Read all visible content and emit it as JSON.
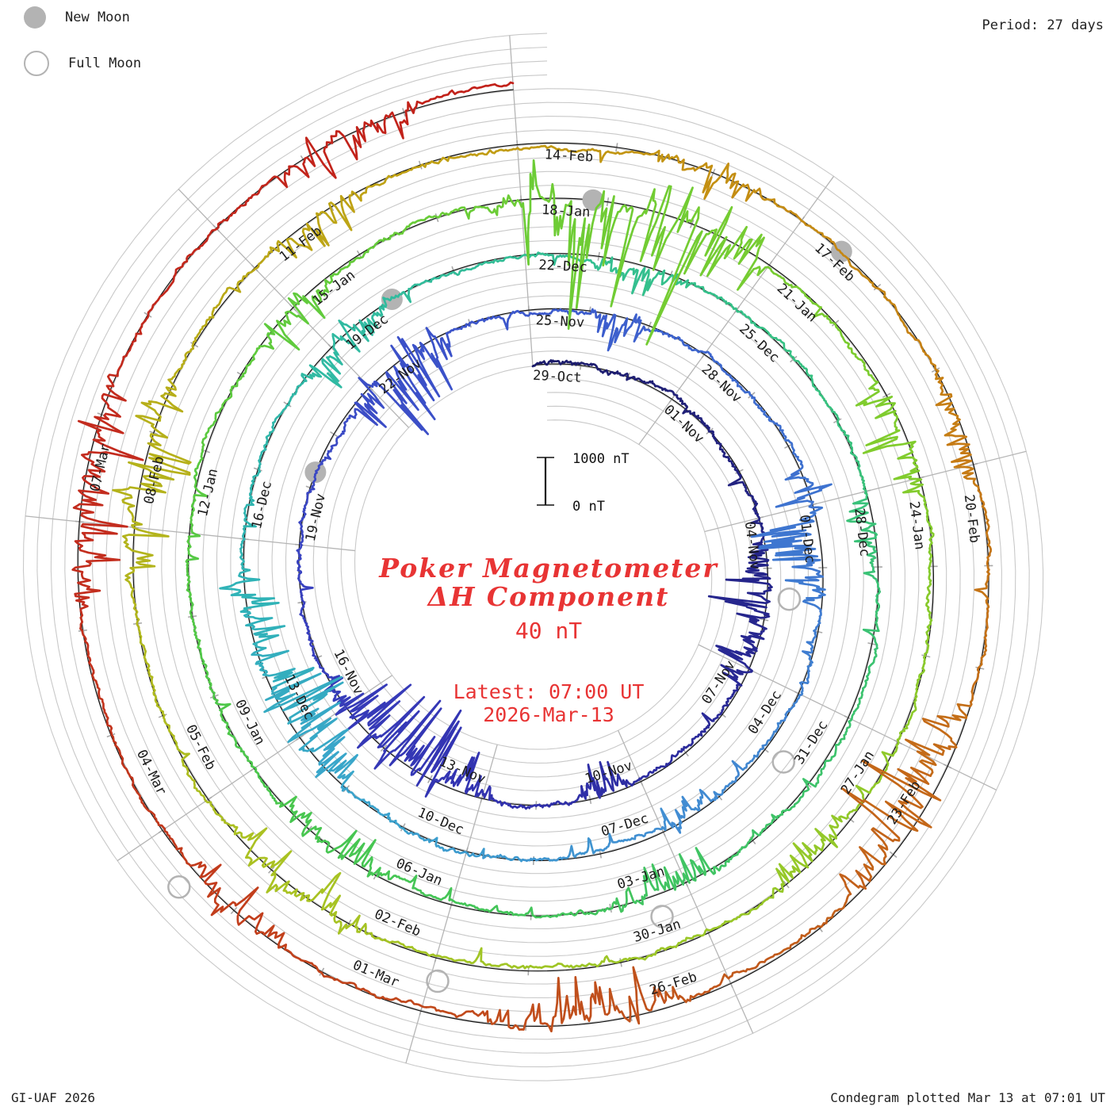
{
  "legend": {
    "new_moon": "New Moon",
    "full_moon": "Full Moon"
  },
  "period_label": "Period: 27 days",
  "credit": "GI-UAF 2026",
  "plotted_label": "Condegram plotted Mar 13 at 07:01 UT",
  "center": {
    "title_line1": "Poker Magnetometer",
    "title_line2": "ΔH Component",
    "amplitude_label": "40 nT",
    "latest_line1": "Latest: 07:00 UT",
    "latest_line2": "2026-Mar-13"
  },
  "scale_bar": {
    "top_label": "1000 nT",
    "bottom_label": "0 nT"
  },
  "colors": {
    "title_red": "#e83434",
    "grid_gray": "#c9c9c9",
    "radial_gray": "#b5b5b5",
    "tick_gray": "#a9a9a9",
    "baseline_black": "#111111",
    "moon_gray": "#b3b3b3",
    "label_dark": "#1c1c1c"
  },
  "chart_data": {
    "type": "line",
    "subtype": "condegram-spiral",
    "station": "Poker",
    "component": "ΔH Component",
    "quiet_amplitude_label": "40 nT",
    "period_days": 27,
    "scale": {
      "bar_nT": [
        0,
        1000
      ]
    },
    "start_day_label": "29-Oct",
    "end_day_label": "13-Mar",
    "latest_sample": "Latest: 07:00 UT 2026-Mar-13",
    "ring_labels": [
      {
        "day": 0,
        "label": "29-Oct"
      },
      {
        "day": 3,
        "label": "01-Nov"
      },
      {
        "day": 6,
        "label": "04-Nov"
      },
      {
        "day": 9,
        "label": "07-Nov"
      },
      {
        "day": 12,
        "label": "10-Nov"
      },
      {
        "day": 15,
        "label": "13-Nov"
      },
      {
        "day": 18,
        "label": "16-Nov"
      },
      {
        "day": 21,
        "label": "19-Nov"
      },
      {
        "day": 24,
        "label": "22-Nov"
      },
      {
        "day": 27,
        "label": "25-Nov"
      },
      {
        "day": 30,
        "label": "28-Nov"
      },
      {
        "day": 33,
        "label": "01-Dec"
      },
      {
        "day": 36,
        "label": "04-Dec"
      },
      {
        "day": 39,
        "label": "07-Dec"
      },
      {
        "day": 42,
        "label": "10-Dec"
      },
      {
        "day": 45,
        "label": "13-Dec"
      },
      {
        "day": 48,
        "label": "16-Dec"
      },
      {
        "day": 51,
        "label": "19-Dec"
      },
      {
        "day": 54,
        "label": "22-Dec"
      },
      {
        "day": 57,
        "label": "25-Dec"
      },
      {
        "day": 60,
        "label": "28-Dec"
      },
      {
        "day": 63,
        "label": "31-Dec"
      },
      {
        "day": 66,
        "label": "03-Jan"
      },
      {
        "day": 69,
        "label": "06-Jan"
      },
      {
        "day": 72,
        "label": "09-Jan"
      },
      {
        "day": 75,
        "label": "12-Jan"
      },
      {
        "day": 78,
        "label": "15-Jan"
      },
      {
        "day": 81,
        "label": "18-Jan"
      },
      {
        "day": 84,
        "label": "21-Jan"
      },
      {
        "day": 87,
        "label": "24-Jan"
      },
      {
        "day": 90,
        "label": "27-Jan"
      },
      {
        "day": 93,
        "label": "30-Jan"
      },
      {
        "day": 96,
        "label": "02-Feb"
      },
      {
        "day": 99,
        "label": "05-Feb"
      },
      {
        "day": 102,
        "label": "08-Feb"
      },
      {
        "day": 105,
        "label": "11-Feb"
      },
      {
        "day": 108,
        "label": "14-Feb"
      },
      {
        "day": 111,
        "label": "17-Feb"
      },
      {
        "day": 114,
        "label": "20-Feb"
      },
      {
        "day": 117,
        "label": "23-Feb"
      },
      {
        "day": 120,
        "label": "26-Feb"
      },
      {
        "day": 123,
        "label": "01-Mar"
      },
      {
        "day": 126,
        "label": "04-Mar"
      },
      {
        "day": 129,
        "label": "07-Mar"
      }
    ],
    "new_moons": [
      {
        "day": 22.28,
        "date": "20-Nov"
      },
      {
        "day": 52.07,
        "date": "20-Dec"
      },
      {
        "day": 81.83,
        "date": "18-Jan"
      },
      {
        "day": 111.5,
        "date": "17-Feb"
      }
    ],
    "full_moons": [
      {
        "day": 7.55,
        "date": "05-Nov"
      },
      {
        "day": 36.97,
        "date": "04-Dec"
      },
      {
        "day": 66.42,
        "date": "03-Jan"
      },
      {
        "day": 95.92,
        "date": "01-Feb"
      },
      {
        "day": 125.5,
        "date": "03-Mar"
      }
    ],
    "color_stops": [
      [
        0,
        "#1c1c6a"
      ],
      [
        8,
        "#26268e"
      ],
      [
        15,
        "#3232b0"
      ],
      [
        21,
        "#3a44c2"
      ],
      [
        27,
        "#3c58cc"
      ],
      [
        33,
        "#3e74d0"
      ],
      [
        39,
        "#428ed2"
      ],
      [
        44,
        "#3aa4cc"
      ],
      [
        47,
        "#30b2b8"
      ],
      [
        51,
        "#30baa2"
      ],
      [
        56,
        "#34c08c"
      ],
      [
        61,
        "#3ac276"
      ],
      [
        66,
        "#40c462"
      ],
      [
        71,
        "#48c650"
      ],
      [
        76,
        "#5aca40"
      ],
      [
        81,
        "#6ccc36"
      ],
      [
        86,
        "#7ecc2e"
      ],
      [
        92,
        "#96c828"
      ],
      [
        98,
        "#aac222"
      ],
      [
        103,
        "#b6b01a"
      ],
      [
        107,
        "#c0a014"
      ],
      [
        110,
        "#c49012"
      ],
      [
        113,
        "#c68014"
      ],
      [
        117,
        "#c46a18"
      ],
      [
        121,
        "#c0521c"
      ],
      [
        125,
        "#c23e1c"
      ],
      [
        129,
        "#c32c1e"
      ],
      [
        135,
        "#c2211a"
      ]
    ],
    "disturbance_events": [
      {
        "from_day": 6.5,
        "to_day": 9.5,
        "peak_nT": 950
      },
      {
        "from_day": 12.2,
        "to_day": 13.2,
        "peak_nT": 700
      },
      {
        "from_day": 14.8,
        "to_day": 18.6,
        "peak_nT": 1450
      },
      {
        "from_day": 23.4,
        "to_day": 25.6,
        "peak_nT": 1500
      },
      {
        "from_day": 28,
        "to_day": 29,
        "peak_nT": 650
      },
      {
        "from_day": 32.4,
        "to_day": 34.6,
        "peak_nT": 1150
      },
      {
        "from_day": 38,
        "to_day": 39,
        "peak_nT": 600
      },
      {
        "from_day": 44,
        "to_day": 47.6,
        "peak_nT": 1250
      },
      {
        "from_day": 50.4,
        "to_day": 52,
        "peak_nT": 800
      },
      {
        "from_day": 55,
        "to_day": 56.2,
        "peak_nT": 600
      },
      {
        "from_day": 60,
        "to_day": 61,
        "peak_nT": 520
      },
      {
        "from_day": 65.4,
        "to_day": 67,
        "peak_nT": 780
      },
      {
        "from_day": 69.8,
        "to_day": 71.6,
        "peak_nT": 850
      },
      {
        "from_day": 77.4,
        "to_day": 78.6,
        "peak_nT": 700
      },
      {
        "from_day": 80.6,
        "to_day": 84,
        "peak_nT": 2500,
        "two_sided": true
      },
      {
        "from_day": 85.8,
        "to_day": 87.2,
        "peak_nT": 1050
      },
      {
        "from_day": 91,
        "to_day": 92.2,
        "peak_nT": 600
      },
      {
        "from_day": 96.8,
        "to_day": 98.6,
        "peak_nT": 780
      },
      {
        "from_day": 101.4,
        "to_day": 103.6,
        "peak_nT": 1100
      },
      {
        "from_day": 105.2,
        "to_day": 106.4,
        "peak_nT": 780
      },
      {
        "from_day": 109.4,
        "to_day": 110.6,
        "peak_nT": 680
      },
      {
        "from_day": 113,
        "to_day": 114.2,
        "peak_nT": 620
      },
      {
        "from_day": 116.4,
        "to_day": 118.6,
        "peak_nT": 1150
      },
      {
        "from_day": 120.4,
        "to_day": 122.6,
        "peak_nT": 1000
      },
      {
        "from_day": 124.4,
        "to_day": 125.6,
        "peak_nT": 700
      },
      {
        "from_day": 128.2,
        "to_day": 130.4,
        "peak_nT": 1150
      },
      {
        "from_day": 132.8,
        "to_day": 134.2,
        "peak_nT": 800
      }
    ]
  }
}
